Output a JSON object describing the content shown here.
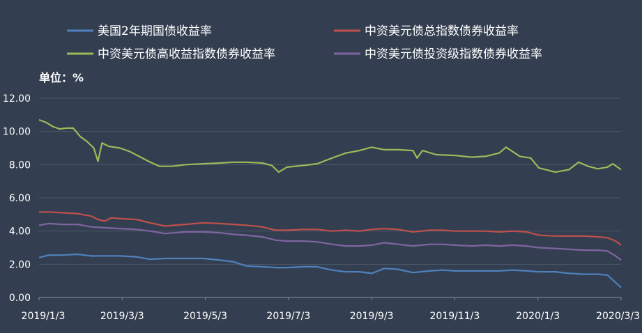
{
  "chart_data": {
    "type": "line",
    "title": "",
    "unit_label": "单位：%",
    "xlabel": "",
    "ylabel": "",
    "ylim": [
      0,
      12
    ],
    "y_ticks": [
      "0.00",
      "2.00",
      "4.00",
      "6.00",
      "8.00",
      "10.00",
      "12.00"
    ],
    "x_ticks": [
      "2019/1/3",
      "2019/3/3",
      "2019/5/3",
      "2019/7/3",
      "2019/9/3",
      "2019/11/3",
      "2020/1/3",
      "2020/3/3"
    ],
    "x_range": [
      "2019-01-03",
      "2020-03-03"
    ],
    "grid": true,
    "legend_position": "top",
    "series": [
      {
        "name": "美国2年期国债收益率",
        "color": "#4f81bd",
        "points": [
          [
            "2019-01-03",
            2.4
          ],
          [
            "2019-01-10",
            2.55
          ],
          [
            "2019-01-20",
            2.55
          ],
          [
            "2019-01-31",
            2.6
          ],
          [
            "2019-02-10",
            2.5
          ],
          [
            "2019-02-20",
            2.5
          ],
          [
            "2019-03-03",
            2.5
          ],
          [
            "2019-03-15",
            2.45
          ],
          [
            "2019-03-25",
            2.3
          ],
          [
            "2019-04-05",
            2.35
          ],
          [
            "2019-04-20",
            2.35
          ],
          [
            "2019-05-03",
            2.35
          ],
          [
            "2019-05-15",
            2.25
          ],
          [
            "2019-05-25",
            2.15
          ],
          [
            "2019-06-03",
            1.9
          ],
          [
            "2019-06-15",
            1.85
          ],
          [
            "2019-06-25",
            1.8
          ],
          [
            "2019-07-03",
            1.8
          ],
          [
            "2019-07-15",
            1.85
          ],
          [
            "2019-07-25",
            1.85
          ],
          [
            "2019-08-05",
            1.65
          ],
          [
            "2019-08-15",
            1.55
          ],
          [
            "2019-08-25",
            1.55
          ],
          [
            "2019-09-03",
            1.45
          ],
          [
            "2019-09-12",
            1.75
          ],
          [
            "2019-09-22",
            1.7
          ],
          [
            "2019-10-03",
            1.5
          ],
          [
            "2019-10-15",
            1.6
          ],
          [
            "2019-10-25",
            1.65
          ],
          [
            "2019-11-03",
            1.6
          ],
          [
            "2019-11-15",
            1.6
          ],
          [
            "2019-11-25",
            1.6
          ],
          [
            "2019-12-05",
            1.6
          ],
          [
            "2019-12-15",
            1.65
          ],
          [
            "2019-12-25",
            1.6
          ],
          [
            "2020-01-03",
            1.55
          ],
          [
            "2020-01-15",
            1.55
          ],
          [
            "2020-01-25",
            1.45
          ],
          [
            "2020-02-05",
            1.4
          ],
          [
            "2020-02-15",
            1.4
          ],
          [
            "2020-02-22",
            1.35
          ],
          [
            "2020-02-28",
            0.9
          ],
          [
            "2020-03-03",
            0.6
          ]
        ]
      },
      {
        "name": "中资美元债总指数债券收益率",
        "color": "#c0504d",
        "points": [
          [
            "2019-01-03",
            5.15
          ],
          [
            "2019-01-10",
            5.15
          ],
          [
            "2019-01-20",
            5.1
          ],
          [
            "2019-01-31",
            5.05
          ],
          [
            "2019-02-10",
            4.9
          ],
          [
            "2019-02-15",
            4.7
          ],
          [
            "2019-02-20",
            4.6
          ],
          [
            "2019-02-25",
            4.8
          ],
          [
            "2019-03-03",
            4.75
          ],
          [
            "2019-03-15",
            4.7
          ],
          [
            "2019-03-25",
            4.5
          ],
          [
            "2019-04-05",
            4.3
          ],
          [
            "2019-04-20",
            4.4
          ],
          [
            "2019-05-03",
            4.5
          ],
          [
            "2019-05-15",
            4.45
          ],
          [
            "2019-05-25",
            4.4
          ],
          [
            "2019-06-03",
            4.35
          ],
          [
            "2019-06-15",
            4.25
          ],
          [
            "2019-06-25",
            4.05
          ],
          [
            "2019-07-03",
            4.05
          ],
          [
            "2019-07-15",
            4.1
          ],
          [
            "2019-07-25",
            4.1
          ],
          [
            "2019-08-05",
            4.0
          ],
          [
            "2019-08-15",
            4.05
          ],
          [
            "2019-08-25",
            4.0
          ],
          [
            "2019-09-03",
            4.1
          ],
          [
            "2019-09-12",
            4.15
          ],
          [
            "2019-09-22",
            4.1
          ],
          [
            "2019-10-03",
            3.95
          ],
          [
            "2019-10-15",
            4.05
          ],
          [
            "2019-10-25",
            4.05
          ],
          [
            "2019-11-03",
            4.0
          ],
          [
            "2019-11-15",
            4.0
          ],
          [
            "2019-11-25",
            4.0
          ],
          [
            "2019-12-05",
            3.95
          ],
          [
            "2019-12-15",
            4.0
          ],
          [
            "2019-12-25",
            3.95
          ],
          [
            "2020-01-03",
            3.75
          ],
          [
            "2020-01-15",
            3.7
          ],
          [
            "2020-01-25",
            3.7
          ],
          [
            "2020-02-05",
            3.7
          ],
          [
            "2020-02-15",
            3.65
          ],
          [
            "2020-02-22",
            3.6
          ],
          [
            "2020-02-28",
            3.4
          ],
          [
            "2020-03-03",
            3.15
          ]
        ]
      },
      {
        "name": "中资美元债高收益指数债券收益率",
        "color": "#9bbb59",
        "points": [
          [
            "2019-01-03",
            10.7
          ],
          [
            "2019-01-08",
            10.55
          ],
          [
            "2019-01-13",
            10.3
          ],
          [
            "2019-01-18",
            10.15
          ],
          [
            "2019-01-23",
            10.2
          ],
          [
            "2019-01-28",
            10.2
          ],
          [
            "2019-02-02",
            9.7
          ],
          [
            "2019-02-07",
            9.4
          ],
          [
            "2019-02-12",
            9.0
          ],
          [
            "2019-02-15",
            8.2
          ],
          [
            "2019-02-18",
            9.3
          ],
          [
            "2019-02-23",
            9.1
          ],
          [
            "2019-03-03",
            9.0
          ],
          [
            "2019-03-10",
            8.8
          ],
          [
            "2019-03-17",
            8.5
          ],
          [
            "2019-03-24",
            8.2
          ],
          [
            "2019-04-01",
            7.9
          ],
          [
            "2019-04-10",
            7.9
          ],
          [
            "2019-04-20",
            8.0
          ],
          [
            "2019-05-03",
            8.05
          ],
          [
            "2019-05-15",
            8.1
          ],
          [
            "2019-05-25",
            8.15
          ],
          [
            "2019-06-03",
            8.15
          ],
          [
            "2019-06-15",
            8.1
          ],
          [
            "2019-06-22",
            7.95
          ],
          [
            "2019-06-27",
            7.55
          ],
          [
            "2019-07-03",
            7.85
          ],
          [
            "2019-07-15",
            7.95
          ],
          [
            "2019-07-25",
            8.05
          ],
          [
            "2019-08-05",
            8.4
          ],
          [
            "2019-08-15",
            8.7
          ],
          [
            "2019-08-25",
            8.85
          ],
          [
            "2019-09-03",
            9.05
          ],
          [
            "2019-09-12",
            8.9
          ],
          [
            "2019-09-22",
            8.9
          ],
          [
            "2019-10-03",
            8.85
          ],
          [
            "2019-10-06",
            8.4
          ],
          [
            "2019-10-10",
            8.85
          ],
          [
            "2019-10-20",
            8.6
          ],
          [
            "2019-11-03",
            8.55
          ],
          [
            "2019-11-15",
            8.45
          ],
          [
            "2019-11-25",
            8.5
          ],
          [
            "2019-12-05",
            8.7
          ],
          [
            "2019-12-10",
            9.05
          ],
          [
            "2019-12-20",
            8.5
          ],
          [
            "2019-12-28",
            8.4
          ],
          [
            "2020-01-03",
            7.8
          ],
          [
            "2020-01-15",
            7.55
          ],
          [
            "2020-01-25",
            7.7
          ],
          [
            "2020-02-01",
            8.15
          ],
          [
            "2020-02-08",
            7.9
          ],
          [
            "2020-02-15",
            7.75
          ],
          [
            "2020-02-22",
            7.85
          ],
          [
            "2020-02-26",
            8.05
          ],
          [
            "2020-03-03",
            7.7
          ]
        ]
      },
      {
        "name": "中资美元债投资级指数债券收益率",
        "color": "#8064a2",
        "points": [
          [
            "2019-01-03",
            4.35
          ],
          [
            "2019-01-10",
            4.45
          ],
          [
            "2019-01-20",
            4.4
          ],
          [
            "2019-01-31",
            4.4
          ],
          [
            "2019-02-10",
            4.25
          ],
          [
            "2019-02-20",
            4.2
          ],
          [
            "2019-03-03",
            4.15
          ],
          [
            "2019-03-15",
            4.1
          ],
          [
            "2019-03-25",
            4.0
          ],
          [
            "2019-04-05",
            3.85
          ],
          [
            "2019-04-20",
            3.95
          ],
          [
            "2019-05-03",
            3.95
          ],
          [
            "2019-05-15",
            3.9
          ],
          [
            "2019-05-25",
            3.8
          ],
          [
            "2019-06-03",
            3.75
          ],
          [
            "2019-06-15",
            3.65
          ],
          [
            "2019-06-25",
            3.45
          ],
          [
            "2019-07-03",
            3.4
          ],
          [
            "2019-07-15",
            3.4
          ],
          [
            "2019-07-25",
            3.35
          ],
          [
            "2019-08-05",
            3.2
          ],
          [
            "2019-08-15",
            3.1
          ],
          [
            "2019-08-25",
            3.1
          ],
          [
            "2019-09-03",
            3.15
          ],
          [
            "2019-09-12",
            3.3
          ],
          [
            "2019-09-22",
            3.2
          ],
          [
            "2019-10-03",
            3.1
          ],
          [
            "2019-10-15",
            3.2
          ],
          [
            "2019-10-25",
            3.2
          ],
          [
            "2019-11-03",
            3.15
          ],
          [
            "2019-11-15",
            3.1
          ],
          [
            "2019-11-25",
            3.15
          ],
          [
            "2019-12-05",
            3.1
          ],
          [
            "2019-12-15",
            3.15
          ],
          [
            "2019-12-25",
            3.1
          ],
          [
            "2020-01-03",
            3.0
          ],
          [
            "2020-01-15",
            2.95
          ],
          [
            "2020-01-25",
            2.9
          ],
          [
            "2020-02-05",
            2.85
          ],
          [
            "2020-02-15",
            2.85
          ],
          [
            "2020-02-22",
            2.8
          ],
          [
            "2020-02-28",
            2.5
          ],
          [
            "2020-03-03",
            2.25
          ]
        ]
      }
    ]
  }
}
